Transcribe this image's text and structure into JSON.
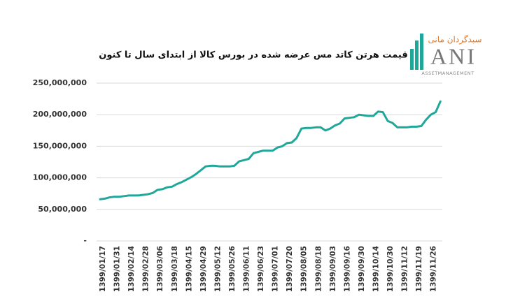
{
  "logo": {
    "persian": "سبدگردان مانی",
    "name": "ANI",
    "tagline": "ASSETMANAGEMENT"
  },
  "chart_data": {
    "type": "line",
    "title": "قیمت هرتن کاتد مس عرضه شده در بورس کالا از ابتدای سال تا کنون",
    "categories": [
      "1399/01/17",
      null,
      null,
      "1399/01/31",
      null,
      null,
      "1399/02/14",
      null,
      null,
      "1399/02/28",
      null,
      null,
      "1399/03/06",
      null,
      null,
      "1399/03/18",
      null,
      null,
      "1399/04/15",
      null,
      null,
      "1399/04/29",
      null,
      null,
      "1399/05/12",
      null,
      null,
      "1399/05/26",
      null,
      null,
      "1399/06/11",
      null,
      null,
      "1399/06/23",
      null,
      null,
      "1399/07/01",
      null,
      null,
      "1399/07/20",
      null,
      null,
      "1399/08/05",
      null,
      null,
      "1399/08/18",
      null,
      null,
      "1399/09/03",
      null,
      null,
      "1399/09/16",
      null,
      null,
      "1399/09/30",
      null,
      null,
      "1399/10/14",
      null,
      null,
      "1399/10/30",
      null,
      null,
      "1399/11/12",
      null,
      null,
      "1399/11/19",
      null,
      null,
      "1399/11/26",
      null,
      null
    ],
    "values": [
      66000000,
      67000000,
      69000000,
      70000000,
      70000000,
      71000000,
      72000000,
      72000000,
      72000000,
      73000000,
      74000000,
      76000000,
      81000000,
      82000000,
      85000000,
      86000000,
      90000000,
      93000000,
      97000000,
      101000000,
      106000000,
      112000000,
      118000000,
      119000000,
      119000000,
      118000000,
      118000000,
      118000000,
      119000000,
      126000000,
      128000000,
      130000000,
      139000000,
      141000000,
      143000000,
      143000000,
      143000000,
      148000000,
      150000000,
      155000000,
      156000000,
      163000000,
      178000000,
      179000000,
      179000000,
      180000000,
      180000000,
      175000000,
      178000000,
      183000000,
      186000000,
      194000000,
      195000000,
      196000000,
      200000000,
      199000000,
      198000000,
      198000000,
      205000000,
      204000000,
      190000000,
      187000000,
      180000000,
      180000000,
      180000000,
      181000000,
      181000000,
      182000000,
      192000000,
      200000000,
      204000000,
      221000000
    ],
    "color": "#1fa79a",
    "ylim": [
      0,
      250000000
    ],
    "yticks": [
      {
        "value": 0,
        "label": "-"
      },
      {
        "value": 50000000,
        "label": "50,000,000"
      },
      {
        "value": 100000000,
        "label": "100,000,000"
      },
      {
        "value": 150000000,
        "label": "150,000,000"
      },
      {
        "value": 200000000,
        "label": "200,000,000"
      },
      {
        "value": 250000000,
        "label": "250,000,000"
      }
    ],
    "grid": true
  }
}
